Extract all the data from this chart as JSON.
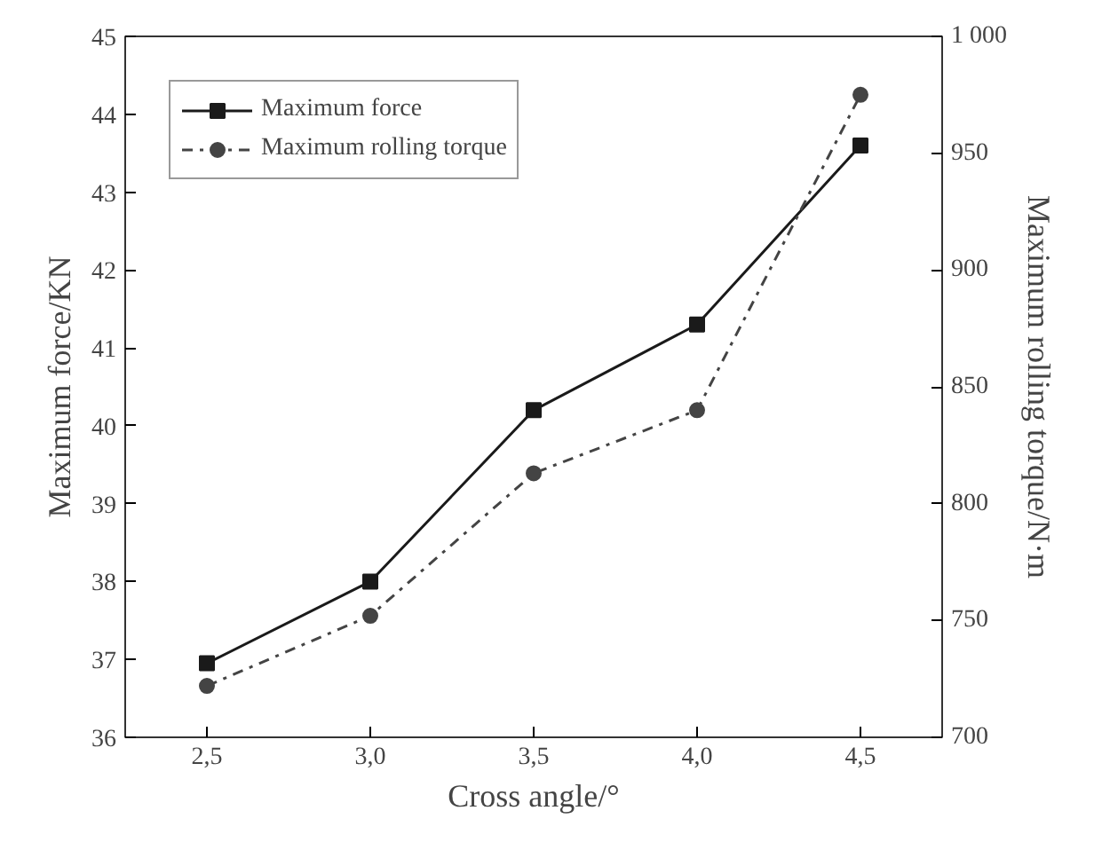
{
  "chart_data": {
    "type": "line",
    "xlabel": "Cross angle/°",
    "ylabel": "Maximum force/KN",
    "y2label": "Maximum rolling torque/N·m",
    "x": [
      2.5,
      3.0,
      3.5,
      4.0,
      4.5
    ],
    "xlim": [
      2.25,
      4.75
    ],
    "xticks": [
      {
        "value": 2.5,
        "label": "2,5"
      },
      {
        "value": 3.0,
        "label": "3,0"
      },
      {
        "value": 3.5,
        "label": "3,5"
      },
      {
        "value": 4.0,
        "label": "4,0"
      },
      {
        "value": 4.5,
        "label": "4,5"
      }
    ],
    "ylim": [
      36,
      45
    ],
    "yticks": [
      36,
      37,
      38,
      39,
      40,
      41,
      42,
      43,
      44,
      45
    ],
    "y2lim": [
      700,
      1000
    ],
    "y2ticks": [
      700,
      750,
      800,
      850,
      900,
      950,
      {
        "value": 1000,
        "label": "1 000"
      }
    ],
    "series": [
      {
        "name": "Maximum force",
        "color": "#1a1a1a",
        "values": [
          36.95,
          38.0,
          40.2,
          41.3,
          43.6
        ],
        "marker": "square",
        "line_style": "solid"
      },
      {
        "name": "Maximum rolling torque",
        "color": "#444444",
        "values": [
          722,
          752,
          813,
          840,
          975
        ],
        "axis": "y2",
        "marker": "circle",
        "line_style": "dashdot"
      }
    ],
    "grid": false,
    "legend": "top left"
  }
}
